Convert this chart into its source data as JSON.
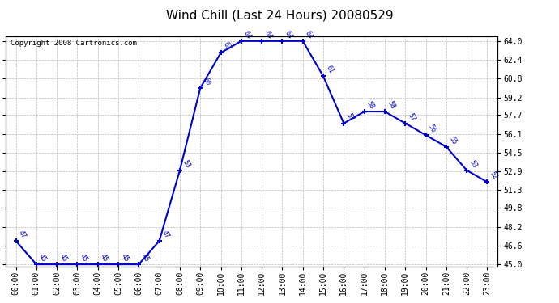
{
  "title": "Wind Chill (Last 24 Hours) 20080529",
  "copyright": "Copyright 2008 Cartronics.com",
  "x_labels": [
    "00:00",
    "01:00",
    "02:00",
    "03:00",
    "04:00",
    "05:00",
    "06:00",
    "07:00",
    "08:00",
    "09:00",
    "10:00",
    "11:00",
    "12:00",
    "13:00",
    "14:00",
    "15:00",
    "16:00",
    "17:00",
    "18:00",
    "19:00",
    "20:00",
    "21:00",
    "22:00",
    "23:00"
  ],
  "y_values": [
    47,
    45,
    45,
    45,
    45,
    45,
    45,
    47,
    53,
    60,
    63,
    64,
    64,
    64,
    64,
    61,
    57,
    58,
    58,
    57,
    56,
    55,
    53,
    52
  ],
  "y_ticks": [
    45.0,
    46.6,
    48.2,
    49.8,
    51.3,
    52.9,
    54.5,
    56.1,
    57.7,
    59.2,
    60.8,
    62.4,
    64.0
  ],
  "y_tick_labels": [
    "45.0",
    "46.6",
    "48.2",
    "49.8",
    "51.3",
    "52.9",
    "54.5",
    "56.1",
    "57.7",
    "59.2",
    "60.8",
    "62.4",
    "64.0"
  ],
  "ylim_min": 44.8,
  "ylim_max": 64.4,
  "line_color": "#0000cc",
  "bg_color": "#ffffff",
  "grid_color": "#bbbbbb",
  "title_fontsize": 11,
  "tick_fontsize": 7,
  "annot_fontsize": 6,
  "copyright_fontsize": 6.5
}
